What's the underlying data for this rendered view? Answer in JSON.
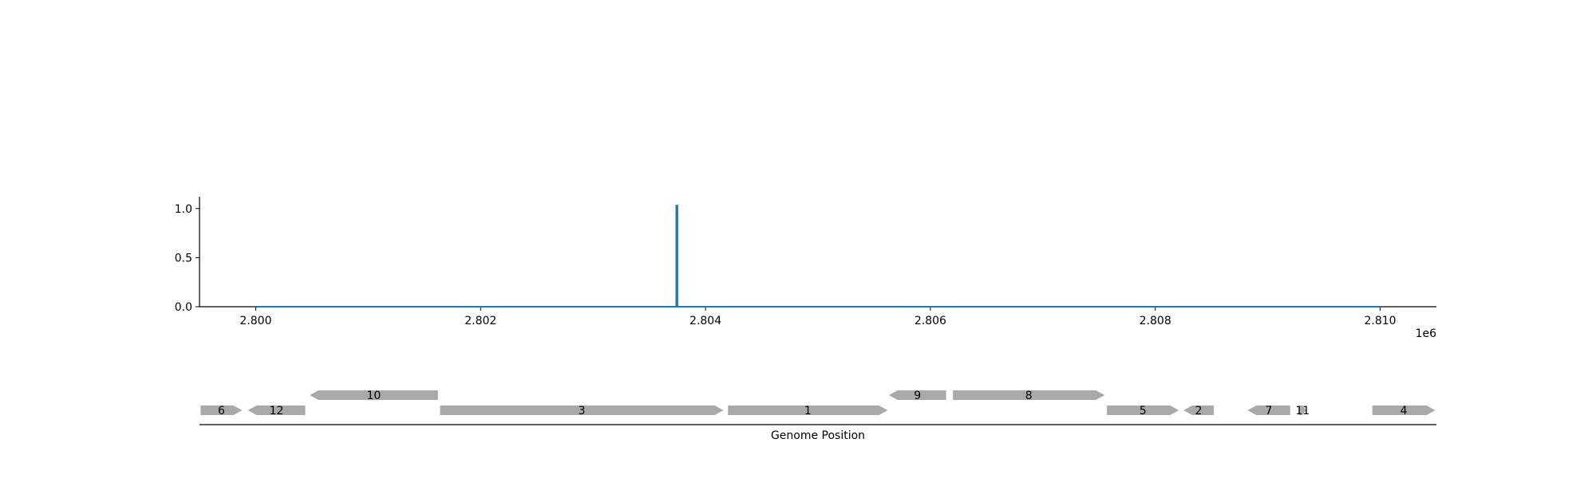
{
  "chart_data": [
    {
      "type": "line",
      "x_offset_label": "1e6",
      "xlim": [
        2799500,
        2810500
      ],
      "ylim": [
        0,
        1.12
      ],
      "x_ticks": [
        2800000,
        2802000,
        2804000,
        2806000,
        2808000,
        2810000
      ],
      "x_tick_labels": [
        "2.800",
        "2.802",
        "2.804",
        "2.806",
        "2.808",
        "2.810"
      ],
      "y_ticks": [
        0.0,
        0.5,
        1.0
      ],
      "y_tick_labels": [
        "0.0",
        "0.5",
        "1.0"
      ],
      "series": [
        {
          "color": "#1f77b4",
          "x": [
            2800000,
            2803740,
            2803740,
            2803750,
            2803750,
            2810000
          ],
          "y": [
            0,
            0,
            1.03,
            1.03,
            0,
            0
          ]
        }
      ],
      "grid": false
    },
    {
      "type": "gene-track",
      "xlabel": "Genome Position",
      "xlim": [
        2799500,
        2810500
      ],
      "feature_color": "#a9a9a9",
      "genes": [
        {
          "label": "6",
          "start": 2799510,
          "end": 2799880,
          "strand": "+",
          "row": 0
        },
        {
          "label": "12",
          "start": 2799930,
          "end": 2800440,
          "strand": "-",
          "row": 0
        },
        {
          "label": "10",
          "start": 2800480,
          "end": 2801620,
          "strand": "-",
          "row": 1
        },
        {
          "label": "3",
          "start": 2801640,
          "end": 2804160,
          "strand": "+",
          "row": 0
        },
        {
          "label": "1",
          "start": 2804200,
          "end": 2805620,
          "strand": "+",
          "row": 0
        },
        {
          "label": "9",
          "start": 2805630,
          "end": 2806140,
          "strand": "-",
          "row": 1
        },
        {
          "label": "8",
          "start": 2806200,
          "end": 2807550,
          "strand": "+",
          "row": 1
        },
        {
          "label": "5",
          "start": 2807570,
          "end": 2808210,
          "strand": "+",
          "row": 0
        },
        {
          "label": "2",
          "start": 2808250,
          "end": 2808520,
          "strand": "-",
          "row": 0
        },
        {
          "label": "7",
          "start": 2808820,
          "end": 2809200,
          "strand": "-",
          "row": 0
        },
        {
          "label": "11",
          "start": 2809280,
          "end": 2809340,
          "strand": "+",
          "row": 0
        },
        {
          "label": "4",
          "start": 2809930,
          "end": 2810490,
          "strand": "+",
          "row": 0
        }
      ]
    }
  ]
}
